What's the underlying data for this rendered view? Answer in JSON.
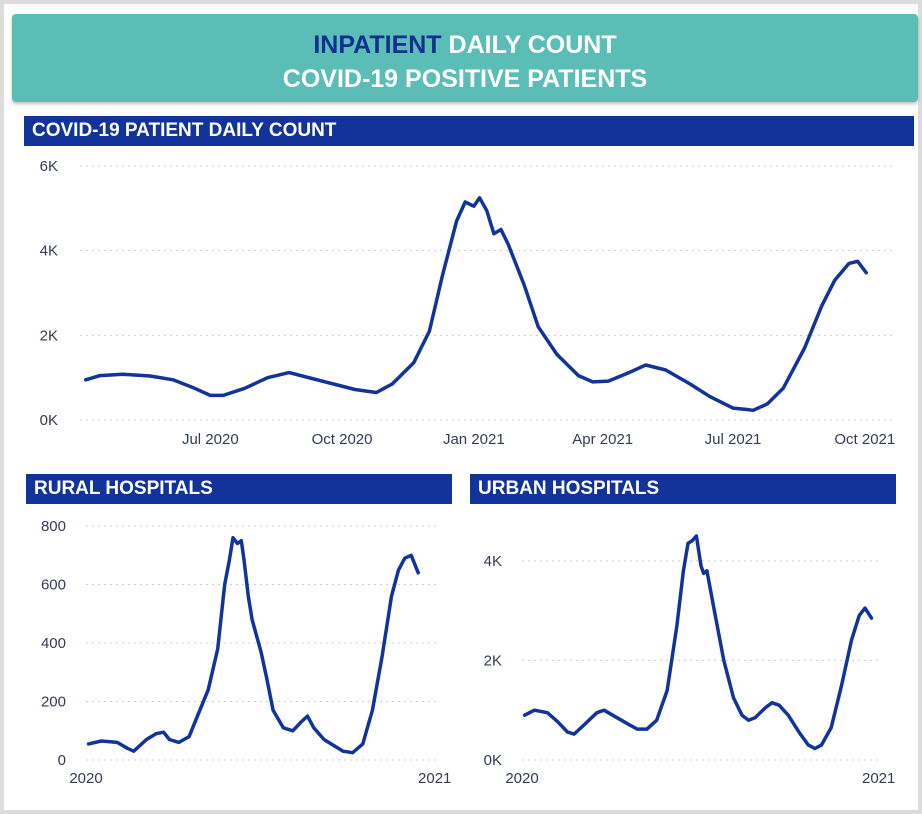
{
  "header": {
    "line1_accent": "INPATIENT",
    "line1_rest": "DAILY COUNT",
    "line2": "COVID-19 POSITIVE PATIENTS"
  },
  "colors": {
    "banner": "#5abdb6",
    "accent": "#12308f",
    "section": "#12339a",
    "line": "#12339a"
  },
  "chart_data": [
    {
      "id": "daily",
      "type": "line",
      "title": "COVID-19 PATIENT DAILY COUNT",
      "y_ticks": [
        {
          "v": 0,
          "label": "0K"
        },
        {
          "v": 2000,
          "label": "2K"
        },
        {
          "v": 4000,
          "label": "4K"
        },
        {
          "v": 6000,
          "label": "6K"
        }
      ],
      "x_ticks": [
        {
          "d": "2020-07-01",
          "label": "Jul 2020"
        },
        {
          "d": "2020-10-01",
          "label": "Oct 2020"
        },
        {
          "d": "2021-01-01",
          "label": "Jan 2021"
        },
        {
          "d": "2021-04-01",
          "label": "Apr 2021"
        },
        {
          "d": "2021-07-01",
          "label": "Jul 2021"
        },
        {
          "d": "2021-10-01",
          "label": "Oct 2021"
        }
      ],
      "xlim": [
        "2020-04-01",
        "2021-10-20"
      ],
      "ylim": [
        0,
        6000
      ],
      "grid": true,
      "points": [
        [
          "2020-04-05",
          950
        ],
        [
          "2020-04-15",
          1050
        ],
        [
          "2020-05-01",
          1080
        ],
        [
          "2020-05-20",
          1040
        ],
        [
          "2020-06-05",
          950
        ],
        [
          "2020-06-20",
          750
        ],
        [
          "2020-07-01",
          580
        ],
        [
          "2020-07-10",
          580
        ],
        [
          "2020-07-25",
          750
        ],
        [
          "2020-08-10",
          1000
        ],
        [
          "2020-08-25",
          1120
        ],
        [
          "2020-09-10",
          980
        ],
        [
          "2020-09-25",
          850
        ],
        [
          "2020-10-10",
          720
        ],
        [
          "2020-10-25",
          650
        ],
        [
          "2020-11-05",
          850
        ],
        [
          "2020-11-20",
          1350
        ],
        [
          "2020-12-01",
          2100
        ],
        [
          "2020-12-10",
          3400
        ],
        [
          "2020-12-20",
          4700
        ],
        [
          "2020-12-26",
          5150
        ],
        [
          "2021-01-01",
          5050
        ],
        [
          "2021-01-05",
          5250
        ],
        [
          "2021-01-10",
          4950
        ],
        [
          "2021-01-15",
          4400
        ],
        [
          "2021-01-20",
          4500
        ],
        [
          "2021-01-25",
          4150
        ],
        [
          "2021-02-05",
          3200
        ],
        [
          "2021-02-15",
          2200
        ],
        [
          "2021-02-28",
          1550
        ],
        [
          "2021-03-15",
          1050
        ],
        [
          "2021-03-25",
          900
        ],
        [
          "2021-04-05",
          920
        ],
        [
          "2021-04-20",
          1130
        ],
        [
          "2021-05-01",
          1300
        ],
        [
          "2021-05-15",
          1180
        ],
        [
          "2021-06-01",
          850
        ],
        [
          "2021-06-15",
          550
        ],
        [
          "2021-07-01",
          280
        ],
        [
          "2021-07-10",
          250
        ],
        [
          "2021-07-15",
          230
        ],
        [
          "2021-07-25",
          380
        ],
        [
          "2021-08-05",
          750
        ],
        [
          "2021-08-20",
          1700
        ],
        [
          "2021-09-01",
          2700
        ],
        [
          "2021-09-10",
          3300
        ],
        [
          "2021-09-20",
          3700
        ],
        [
          "2021-09-26",
          3750
        ],
        [
          "2021-10-02",
          3480
        ]
      ]
    },
    {
      "id": "rural",
      "type": "line",
      "title": "RURAL HOSPITALS",
      "y_ticks": [
        {
          "v": 0,
          "label": "0"
        },
        {
          "v": 200,
          "label": "200"
        },
        {
          "v": 400,
          "label": "400"
        },
        {
          "v": 600,
          "label": "600"
        },
        {
          "v": 800,
          "label": "800"
        }
      ],
      "x_ticks": [
        {
          "d": "2020-04-01",
          "label": "2020"
        },
        {
          "d": "2021-10-01",
          "label": "2021"
        }
      ],
      "xlim": [
        "2020-04-01",
        "2021-10-03"
      ],
      "ylim": [
        0,
        800
      ],
      "grid": true,
      "points": [
        [
          "2020-04-05",
          55
        ],
        [
          "2020-04-25",
          65
        ],
        [
          "2020-05-20",
          60
        ],
        [
          "2020-06-05",
          40
        ],
        [
          "2020-06-15",
          30
        ],
        [
          "2020-07-05",
          70
        ],
        [
          "2020-07-20",
          90
        ],
        [
          "2020-08-01",
          95
        ],
        [
          "2020-08-10",
          70
        ],
        [
          "2020-08-25",
          60
        ],
        [
          "2020-09-10",
          80
        ],
        [
          "2020-09-25",
          160
        ],
        [
          "2020-10-10",
          240
        ],
        [
          "2020-10-25",
          380
        ],
        [
          "2020-11-05",
          600
        ],
        [
          "2020-11-12",
          680
        ],
        [
          "2020-11-18",
          760
        ],
        [
          "2020-11-25",
          740
        ],
        [
          "2020-12-01",
          750
        ],
        [
          "2020-12-05",
          690
        ],
        [
          "2020-12-12",
          560
        ],
        [
          "2020-12-18",
          480
        ],
        [
          "2021-01-01",
          370
        ],
        [
          "2021-01-10",
          280
        ],
        [
          "2021-01-20",
          170
        ],
        [
          "2021-02-05",
          110
        ],
        [
          "2021-02-20",
          100
        ],
        [
          "2021-03-05",
          130
        ],
        [
          "2021-03-15",
          150
        ],
        [
          "2021-03-25",
          110
        ],
        [
          "2021-04-10",
          70
        ],
        [
          "2021-04-25",
          50
        ],
        [
          "2021-05-10",
          30
        ],
        [
          "2021-05-25",
          25
        ],
        [
          "2021-06-10",
          55
        ],
        [
          "2021-06-25",
          170
        ],
        [
          "2021-07-10",
          350
        ],
        [
          "2021-07-25",
          560
        ],
        [
          "2021-08-05",
          650
        ],
        [
          "2021-08-15",
          690
        ],
        [
          "2021-08-25",
          700
        ],
        [
          "2021-09-05",
          640
        ]
      ]
    },
    {
      "id": "urban",
      "type": "line",
      "title": "URBAN HOSPITALS",
      "y_ticks": [
        {
          "v": 0,
          "label": "0K"
        },
        {
          "v": 2000,
          "label": "2K"
        },
        {
          "v": 4000,
          "label": "4K"
        }
      ],
      "x_ticks": [
        {
          "d": "2020-04-01",
          "label": "2020"
        },
        {
          "d": "2021-10-01",
          "label": "2021"
        }
      ],
      "xlim": [
        "2020-04-01",
        "2021-10-03"
      ],
      "ylim": [
        0,
        4700
      ],
      "grid": true,
      "points": [
        [
          "2020-04-05",
          900
        ],
        [
          "2020-04-20",
          1000
        ],
        [
          "2020-05-10",
          950
        ],
        [
          "2020-05-25",
          780
        ],
        [
          "2020-06-10",
          560
        ],
        [
          "2020-06-20",
          520
        ],
        [
          "2020-07-05",
          700
        ],
        [
          "2020-07-25",
          950
        ],
        [
          "2020-08-05",
          1000
        ],
        [
          "2020-08-25",
          850
        ],
        [
          "2020-09-10",
          730
        ],
        [
          "2020-09-25",
          620
        ],
        [
          "2020-10-10",
          620
        ],
        [
          "2020-10-25",
          800
        ],
        [
          "2020-11-10",
          1400
        ],
        [
          "2020-11-25",
          2700
        ],
        [
          "2020-12-05",
          3800
        ],
        [
          "2020-12-12",
          4350
        ],
        [
          "2020-12-18",
          4400
        ],
        [
          "2020-12-25",
          4500
        ],
        [
          "2021-01-01",
          3900
        ],
        [
          "2021-01-05",
          3750
        ],
        [
          "2021-01-10",
          3800
        ],
        [
          "2021-01-20",
          3100
        ],
        [
          "2021-02-05",
          2000
        ],
        [
          "2021-02-20",
          1250
        ],
        [
          "2021-03-05",
          900
        ],
        [
          "2021-03-15",
          800
        ],
        [
          "2021-03-25",
          850
        ],
        [
          "2021-04-10",
          1050
        ],
        [
          "2021-04-20",
          1150
        ],
        [
          "2021-05-01",
          1100
        ],
        [
          "2021-05-15",
          900
        ],
        [
          "2021-06-01",
          550
        ],
        [
          "2021-06-15",
          300
        ],
        [
          "2021-06-25",
          230
        ],
        [
          "2021-07-05",
          300
        ],
        [
          "2021-07-20",
          650
        ],
        [
          "2021-08-05",
          1500
        ],
        [
          "2021-08-20",
          2400
        ],
        [
          "2021-09-01",
          2900
        ],
        [
          "2021-09-10",
          3050
        ],
        [
          "2021-09-20",
          2850
        ]
      ]
    }
  ]
}
